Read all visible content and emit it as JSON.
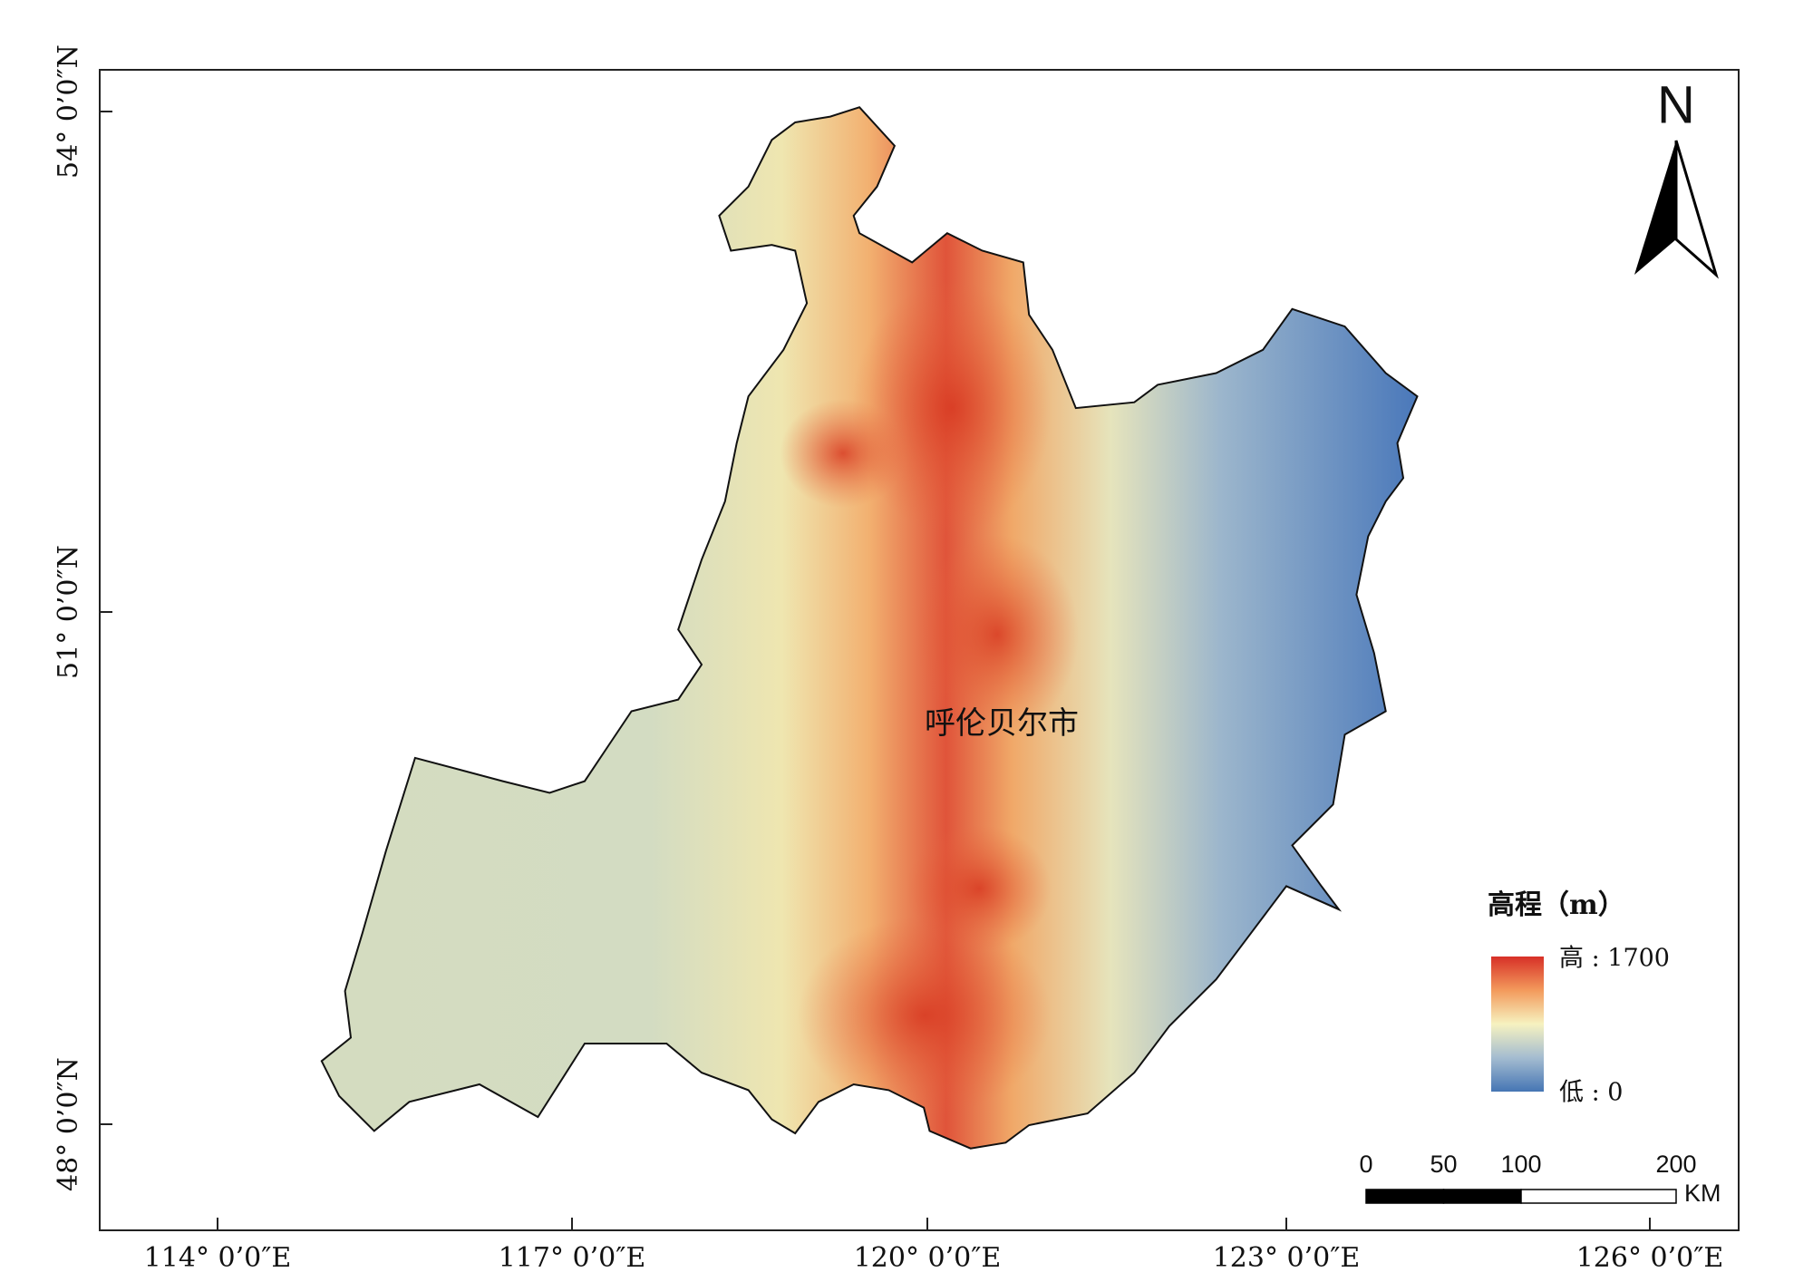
{
  "map": {
    "label": "呼伦贝尔市",
    "lon_labels": [
      "114° 0’0″E",
      "117° 0’0″E",
      "120° 0’0″E",
      "123° 0’0″E",
      "126° 0’0″E"
    ],
    "lat_labels": [
      "54° 0’0″N",
      "51° 0’0″N",
      "48° 0’0″N"
    ]
  },
  "north_arrow": "N",
  "legend": {
    "title": "高程（m）",
    "high": "高 : 1700",
    "low": "低 : 0"
  },
  "scale_bar": {
    "ticks": [
      0,
      50,
      100,
      200
    ],
    "unit": "KM"
  }
}
